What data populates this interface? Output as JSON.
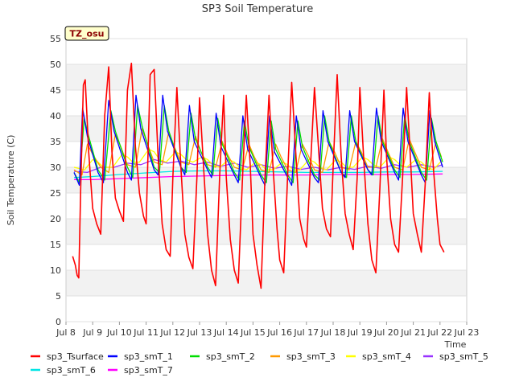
{
  "chart_data": {
    "type": "line",
    "title": "SP3 Soil Temperature",
    "xlabel": "Time",
    "ylabel": "Soil Temperature (C)",
    "timezone_label": "TZ_osu",
    "xlim": [
      8,
      23
    ],
    "ylim": [
      0,
      55
    ],
    "x_ticks": [
      {
        "value": 8,
        "label": "Jul 8"
      },
      {
        "value": 9,
        "label": "Jul 9"
      },
      {
        "value": 10,
        "label": "Jul 10"
      },
      {
        "value": 11,
        "label": "Jul 11"
      },
      {
        "value": 12,
        "label": "Jul 12"
      },
      {
        "value": 13,
        "label": "Jul 13"
      },
      {
        "value": 14,
        "label": "Jul 14"
      },
      {
        "value": 15,
        "label": "Jul 15"
      },
      {
        "value": 16,
        "label": "Jul 16"
      },
      {
        "value": 17,
        "label": "Jul 17"
      },
      {
        "value": 18,
        "label": "Jul 18"
      },
      {
        "value": 19,
        "label": "Jul 19"
      },
      {
        "value": 20,
        "label": "Jul 20"
      },
      {
        "value": 21,
        "label": "Jul 21"
      },
      {
        "value": 22,
        "label": "Jul 22"
      },
      {
        "value": 23,
        "label": "Jul 23"
      }
    ],
    "y_ticks": [
      0,
      5,
      10,
      15,
      20,
      25,
      30,
      35,
      40,
      45,
      50,
      55
    ],
    "series": [
      {
        "name": "sp3_Tsurface",
        "color": "#ff0000",
        "x": [
          8.25,
          8.35,
          8.42,
          8.48,
          8.55,
          8.65,
          8.72,
          8.85,
          9.0,
          9.15,
          9.3,
          9.45,
          9.6,
          9.72,
          9.85,
          10.0,
          10.15,
          10.3,
          10.45,
          10.6,
          10.75,
          10.9,
          11.0,
          11.15,
          11.3,
          11.45,
          11.6,
          11.75,
          11.9,
          12.0,
          12.15,
          12.3,
          12.45,
          12.6,
          12.75,
          12.9,
          13.0,
          13.15,
          13.3,
          13.45,
          13.6,
          13.75,
          13.9,
          14.0,
          14.15,
          14.3,
          14.45,
          14.6,
          14.75,
          14.9,
          15.0,
          15.15,
          15.3,
          15.45,
          15.6,
          15.75,
          15.9,
          16.0,
          16.15,
          16.3,
          16.45,
          16.6,
          16.75,
          16.9,
          17.0,
          17.15,
          17.3,
          17.45,
          17.6,
          17.75,
          17.9,
          18.0,
          18.15,
          18.3,
          18.45,
          18.6,
          18.75,
          18.9,
          19.0,
          19.15,
          19.3,
          19.45,
          19.6,
          19.75,
          19.9,
          20.0,
          20.15,
          20.3,
          20.45,
          20.6,
          20.75,
          20.9,
          21.0,
          21.15,
          21.3,
          21.45,
          21.6,
          21.75,
          21.9,
          22.0,
          22.15
        ],
        "values": [
          12.7,
          11.0,
          9.0,
          8.5,
          26.0,
          46.0,
          47.0,
          33.0,
          22.0,
          19.0,
          17.0,
          40.0,
          49.5,
          33.0,
          24.0,
          21.5,
          19.5,
          45.0,
          50.2,
          34.0,
          25.0,
          20.5,
          19.0,
          48.0,
          49.0,
          32.0,
          19.0,
          14.0,
          12.7,
          28.0,
          45.5,
          30.0,
          17.0,
          12.5,
          10.3,
          28.0,
          43.5,
          30.0,
          17.0,
          10.0,
          7.0,
          28.0,
          44.0,
          28.0,
          16.0,
          10.0,
          7.5,
          27.0,
          44.0,
          30.0,
          17.0,
          11.0,
          6.5,
          28.0,
          44.0,
          30.0,
          18.0,
          12.0,
          9.5,
          29.0,
          46.5,
          33.0,
          20.0,
          16.0,
          14.5,
          30.0,
          45.5,
          34.0,
          22.0,
          18.0,
          16.5,
          30.0,
          48.0,
          32.0,
          21.0,
          17.0,
          14.0,
          28.0,
          45.5,
          31.0,
          19.0,
          12.0,
          9.5,
          26.0,
          45.0,
          32.0,
          20.0,
          15.0,
          13.5,
          28.0,
          45.5,
          31.0,
          21.0,
          17.0,
          13.5,
          27.0,
          44.5,
          30.0,
          20.0,
          15.0,
          13.5
        ]
      },
      {
        "name": "sp3_smT_1",
        "color": "#0000ff",
        "x": [
          8.3,
          8.5,
          8.62,
          8.8,
          9.2,
          9.4,
          9.6,
          9.8,
          10.3,
          10.45,
          10.62,
          10.8,
          11.3,
          11.45,
          11.62,
          11.8,
          12.3,
          12.45,
          12.62,
          12.8,
          13.3,
          13.45,
          13.62,
          13.8,
          14.3,
          14.45,
          14.62,
          14.8,
          15.3,
          15.45,
          15.62,
          15.8,
          16.3,
          16.45,
          16.62,
          16.8,
          17.3,
          17.45,
          17.62,
          17.8,
          18.3,
          18.45,
          18.62,
          18.8,
          19.3,
          19.45,
          19.62,
          19.8,
          20.3,
          20.45,
          20.62,
          20.8,
          21.3,
          21.45,
          21.62,
          21.8,
          22.1
        ],
        "values": [
          29.0,
          26.5,
          41.5,
          36.0,
          29.0,
          27.0,
          43.0,
          37.0,
          29.0,
          27.5,
          44.0,
          37.5,
          29.5,
          28.5,
          44.0,
          37.0,
          30.0,
          28.5,
          42.0,
          35.0,
          29.5,
          28.0,
          40.5,
          34.0,
          28.5,
          27.0,
          40.0,
          33.5,
          28.0,
          26.5,
          40.0,
          33.0,
          28.0,
          26.5,
          40.0,
          33.5,
          28.0,
          27.0,
          41.0,
          35.0,
          29.0,
          28.0,
          41.0,
          35.0,
          29.5,
          28.5,
          41.5,
          35.0,
          29.0,
          27.5,
          41.5,
          35.0,
          28.5,
          27.0,
          41.0,
          35.0,
          30.0
        ]
      },
      {
        "name": "sp3_smT_2",
        "color": "#00dd00",
        "x": [
          8.3,
          8.5,
          8.68,
          8.85,
          9.2,
          9.45,
          9.68,
          9.85,
          10.3,
          10.5,
          10.68,
          10.85,
          11.3,
          11.5,
          11.68,
          11.85,
          12.3,
          12.5,
          12.68,
          12.85,
          13.3,
          13.5,
          13.68,
          13.85,
          14.3,
          14.5,
          14.68,
          14.85,
          15.3,
          15.5,
          15.68,
          15.85,
          16.3,
          16.5,
          16.68,
          16.85,
          17.3,
          17.5,
          17.68,
          17.85,
          18.3,
          18.5,
          18.68,
          18.85,
          19.3,
          19.5,
          19.68,
          19.85,
          20.3,
          20.5,
          20.68,
          20.85,
          21.3,
          21.5,
          21.68,
          21.85,
          22.1
        ],
        "values": [
          29.0,
          27.0,
          39.5,
          36.0,
          29.5,
          27.5,
          41.0,
          37.0,
          30.0,
          28.0,
          42.0,
          38.0,
          30.0,
          29.0,
          42.0,
          37.0,
          30.0,
          29.0,
          40.5,
          35.5,
          30.0,
          28.5,
          39.5,
          34.5,
          29.0,
          27.5,
          39.0,
          34.0,
          28.5,
          27.0,
          39.0,
          33.5,
          28.5,
          27.0,
          39.0,
          34.0,
          28.5,
          27.5,
          40.0,
          35.0,
          29.0,
          28.0,
          40.0,
          35.0,
          29.5,
          28.5,
          40.0,
          35.0,
          29.5,
          28.0,
          40.0,
          35.0,
          29.0,
          27.5,
          39.5,
          35.0,
          31.0
        ]
      },
      {
        "name": "sp3_smT_3",
        "color": "#ff9900",
        "x": [
          8.3,
          8.6,
          8.8,
          9.0,
          9.3,
          9.6,
          9.85,
          10.05,
          10.3,
          10.6,
          10.85,
          11.05,
          11.3,
          11.6,
          11.85,
          12.05,
          12.3,
          12.6,
          12.85,
          13.05,
          13.3,
          13.6,
          13.85,
          14.05,
          14.3,
          14.6,
          14.85,
          15.05,
          15.3,
          15.6,
          15.85,
          16.05,
          16.3,
          16.6,
          16.85,
          17.05,
          17.3,
          17.6,
          17.85,
          18.05,
          18.3,
          18.6,
          18.85,
          19.05,
          19.3,
          19.6,
          19.85,
          20.05,
          20.3,
          20.6,
          20.85,
          21.05,
          21.3,
          21.6,
          21.85,
          22.05
        ],
        "values": [
          29.5,
          28.5,
          34.5,
          32.5,
          30.0,
          29.0,
          36.5,
          34.0,
          30.5,
          30.0,
          37.5,
          34.5,
          31.0,
          30.5,
          37.0,
          34.0,
          31.0,
          30.5,
          36.0,
          33.0,
          30.5,
          30.0,
          35.0,
          32.5,
          30.0,
          29.5,
          34.5,
          32.0,
          29.5,
          29.0,
          34.5,
          32.0,
          29.5,
          29.0,
          34.5,
          32.5,
          29.5,
          29.0,
          35.0,
          33.0,
          30.0,
          29.5,
          35.0,
          33.0,
          30.0,
          30.0,
          35.5,
          33.0,
          30.0,
          29.5,
          35.5,
          33.0,
          30.0,
          29.5,
          35.0,
          32.0
        ]
      },
      {
        "name": "sp3_smT_4",
        "color": "#ffff00",
        "x": [
          8.3,
          8.7,
          9.0,
          9.2,
          9.4,
          9.75,
          10.1,
          10.3,
          10.5,
          10.75,
          11.1,
          11.3,
          11.5,
          11.75,
          12.1,
          12.3,
          12.5,
          12.75,
          13.1,
          13.3,
          13.5,
          13.75,
          14.1,
          14.3,
          14.5,
          14.75,
          15.1,
          15.3,
          15.5,
          15.75,
          16.1,
          16.3,
          16.5,
          16.75,
          17.1,
          17.3,
          17.5,
          17.75,
          18.1,
          18.3,
          18.5,
          18.75,
          19.1,
          19.3,
          19.5,
          19.75,
          20.1,
          20.3,
          20.5,
          20.75,
          21.1,
          21.3,
          21.5,
          21.75,
          22.1
        ],
        "values": [
          30.0,
          29.5,
          31.5,
          31.0,
          30.0,
          30.0,
          32.5,
          32.0,
          31.0,
          31.0,
          33.5,
          33.0,
          31.5,
          31.0,
          33.0,
          32.5,
          31.5,
          31.0,
          32.0,
          31.5,
          30.5,
          30.0,
          31.5,
          31.0,
          30.0,
          29.5,
          31.0,
          30.5,
          29.5,
          29.5,
          31.0,
          30.5,
          29.5,
          29.5,
          31.5,
          31.0,
          30.0,
          29.5,
          31.5,
          31.0,
          30.0,
          30.0,
          32.0,
          31.5,
          30.5,
          30.0,
          32.0,
          31.5,
          30.5,
          30.0,
          31.5,
          31.0,
          30.0,
          29.5,
          31.5
        ]
      },
      {
        "name": "sp3_smT_5",
        "color": "#9933ff",
        "x": [
          8.3,
          8.8,
          9.3,
          9.8,
          10.3,
          10.8,
          11.3,
          11.8,
          12.3,
          12.8,
          13.3,
          13.8,
          14.3,
          14.8,
          15.3,
          15.8,
          16.3,
          16.8,
          17.3,
          17.8,
          18.3,
          18.8,
          19.3,
          19.8,
          20.3,
          20.8,
          21.3,
          21.8,
          22.1
        ],
        "values": [
          29.2,
          29.0,
          30.0,
          30.0,
          30.8,
          30.5,
          31.5,
          30.8,
          31.2,
          30.5,
          31.0,
          30.2,
          30.8,
          30.0,
          30.5,
          29.8,
          30.2,
          29.6,
          30.0,
          29.5,
          30.0,
          29.6,
          30.2,
          29.8,
          30.5,
          30.0,
          30.5,
          30.0,
          30.5
        ]
      },
      {
        "name": "sp3_smT_6",
        "color": "#00e5e5",
        "x": [
          8.3,
          9.0,
          10.0,
          11.0,
          12.0,
          13.0,
          14.0,
          15.0,
          16.0,
          17.0,
          18.0,
          19.0,
          20.0,
          21.0,
          22.1
        ],
        "values": [
          28.0,
          28.2,
          28.6,
          28.9,
          29.2,
          29.3,
          29.3,
          29.2,
          29.1,
          29.0,
          29.0,
          29.0,
          29.1,
          29.1,
          29.2
        ]
      },
      {
        "name": "sp3_smT_7",
        "color": "#ff00ff",
        "x": [
          8.3,
          9.0,
          10.0,
          11.0,
          12.0,
          13.0,
          14.0,
          15.0,
          16.0,
          17.0,
          18.0,
          19.0,
          20.0,
          21.0,
          22.1
        ],
        "values": [
          27.6,
          27.6,
          27.8,
          28.0,
          28.2,
          28.3,
          28.4,
          28.5,
          28.5,
          28.5,
          28.6,
          28.6,
          28.6,
          28.6,
          28.7
        ]
      }
    ]
  }
}
